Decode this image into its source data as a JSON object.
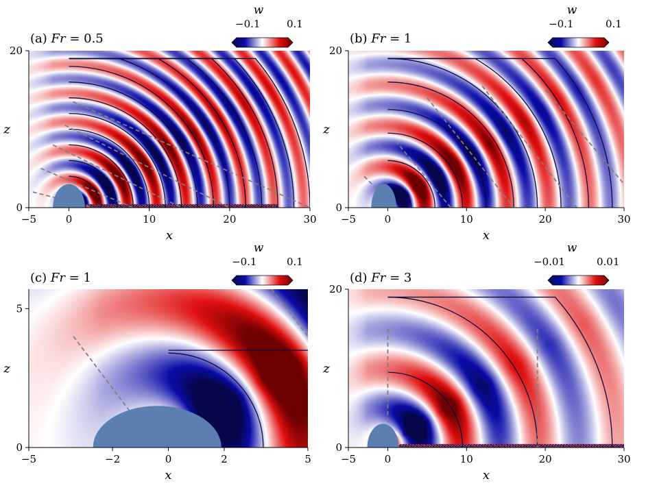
{
  "figure": {
    "colors": {
      "negative": "#0b0ba8",
      "negative_deep": "#06064a",
      "positive": "#e01010",
      "positive_deep": "#6e0000",
      "neutral": "#ffffff",
      "obstacle": "#5b7fb0",
      "crest": "#0a0a40",
      "ray": "#808080"
    }
  },
  "chart_data": [
    {
      "type": "heatmap",
      "panel": "(a)",
      "title": "(a) Fr = 0.5",
      "title_prefix": "(a) ",
      "title_var": "Fr",
      "title_rest": " = 0.5",
      "xlabel": "x",
      "ylabel": "z",
      "xlim": [
        -5,
        30
      ],
      "ylim": [
        0,
        20
      ],
      "xticks": [
        -5,
        0,
        10,
        20,
        30
      ],
      "xtick_labels": [
        "−5",
        "0",
        "10",
        "20",
        "30"
      ],
      "yticks": [
        0,
        20
      ],
      "ytick_labels": [
        "0",
        "20"
      ],
      "colorbar": {
        "label": "w",
        "min": -0.1,
        "max": 0.1,
        "min_label": "−0.1",
        "max_label": "0.1"
      },
      "obstacle": {
        "x_center": 0,
        "half_width": 2,
        "height": 0.5
      },
      "wave": {
        "k": 1.6,
        "envelope": 2.2,
        "shift": 0.12,
        "amp": 1.5,
        "turb_until": 26
      },
      "crest_radii": [
        2,
        4,
        6,
        8,
        10,
        12,
        14,
        16,
        18,
        20,
        22,
        24,
        26,
        28,
        30
      ],
      "crest_x0": 0,
      "crest_clip_z": 19,
      "rays": [
        {
          "x0": -4.5,
          "z0": 2,
          "x1": 3,
          "z1": 0
        },
        {
          "x0": -3.5,
          "z0": 5,
          "x1": 8,
          "z1": 0
        },
        {
          "x0": -2,
          "z0": 8,
          "x1": 14,
          "z1": 0
        },
        {
          "x0": -0.5,
          "z0": 10.5,
          "x1": 20,
          "z1": 0
        },
        {
          "x0": 0.5,
          "z0": 13.5,
          "x1": 30,
          "z1": 0
        }
      ]
    },
    {
      "type": "heatmap",
      "panel": "(b)",
      "title": "(b) Fr = 1",
      "title_prefix": "(b) ",
      "title_var": "Fr",
      "title_rest": " = 1",
      "xlabel": "x",
      "ylabel": "z",
      "xlim": [
        -5,
        30
      ],
      "ylim": [
        0,
        20
      ],
      "xticks": [
        -5,
        0,
        10,
        20,
        30
      ],
      "xtick_labels": [
        "−5",
        "0",
        "10",
        "20",
        "30"
      ],
      "yticks": [
        0,
        20
      ],
      "ytick_labels": [
        "0",
        "20"
      ],
      "colorbar": {
        "label": "w",
        "min": -0.1,
        "max": 0.1,
        "min_label": "−0.1",
        "max_label": "0.1"
      },
      "obstacle": {
        "x_center": -0.5,
        "half_width": 1.6,
        "height": 0.5
      },
      "wave": {
        "k": 1.05,
        "envelope": 1.6,
        "shift": 0.15,
        "amp": 1.7,
        "turb_until": 0
      },
      "crest_radii": [
        3,
        6,
        9.5,
        12.5,
        16,
        19,
        22,
        25.5,
        28.5
      ],
      "crest_x0": 0,
      "crest_clip_z": 19,
      "rays": [
        {
          "x0": -3,
          "z0": 4,
          "x1": 1,
          "z1": 0
        },
        {
          "x0": 1,
          "z0": 8.5,
          "x1": 8,
          "z1": 0
        },
        {
          "x0": 5,
          "z0": 14,
          "x1": 16,
          "z1": 0
        },
        {
          "x0": 12,
          "z0": 15.5,
          "x1": 24,
          "z1": 0
        },
        {
          "x0": 20,
          "z0": 15,
          "x1": 30,
          "z1": 3
        }
      ]
    },
    {
      "type": "heatmap",
      "panel": "(c)",
      "title": "(c) Fr = 1",
      "title_prefix": "(c) ",
      "title_var": "Fr",
      "title_rest": " = 1",
      "xlabel": "x",
      "ylabel": "z",
      "xlim": [
        -5,
        5
      ],
      "ylim": [
        0,
        5.7
      ],
      "xticks": [
        -5,
        -2,
        0,
        2,
        5
      ],
      "xtick_labels": [
        "−5",
        "−2",
        "0",
        "2",
        "5"
      ],
      "yticks": [
        0,
        5
      ],
      "ytick_labels": [
        "0",
        "5"
      ],
      "colorbar": {
        "label": "w",
        "min": -0.1,
        "max": 0.1,
        "min_label": "−0.1",
        "max_label": "0.1"
      },
      "obstacle": {
        "x_center": -0.4,
        "half_width": 2.3,
        "height": 0.5
      },
      "wave": {
        "k": 1.05,
        "envelope": 1.6,
        "shift": 0.15,
        "amp": 1.7,
        "turb_until": 0
      },
      "crest_radii": [
        3.4,
        6.6
      ],
      "crest_x0": 0,
      "crest_clip_z": 3.5,
      "rays": [
        {
          "x0": -3.4,
          "z0": 4,
          "x1": -0.4,
          "z1": 0
        },
        {
          "x0": 3.7,
          "z0": 5.7,
          "x1": 5,
          "z1": 4
        }
      ]
    },
    {
      "type": "heatmap",
      "panel": "(d)",
      "title": "(d) Fr = 3",
      "title_prefix": "(d) ",
      "title_var": "Fr",
      "title_rest": " = 3",
      "xlabel": "x",
      "ylabel": "z",
      "xlim": [
        -5,
        30
      ],
      "ylim": [
        0,
        20
      ],
      "xticks": [
        -5,
        0,
        10,
        20,
        30
      ],
      "xtick_labels": [
        "−5",
        "0",
        "10",
        "20",
        "30"
      ],
      "yticks": [
        0,
        20
      ],
      "ytick_labels": [
        "0",
        "20"
      ],
      "colorbar": {
        "label": "w",
        "min": -0.01,
        "max": 0.01,
        "min_label": "−0.01",
        "max_label": "0.01"
      },
      "obstacle": {
        "x_center": -0.6,
        "half_width": 2,
        "height": 0.5
      },
      "wave": {
        "k": 0.33,
        "envelope": 1.2,
        "shift": 0.3,
        "amp": 1.8,
        "turb_until": 30
      },
      "crest_radii": [
        9.5,
        19,
        28.5
      ],
      "crest_x0": 0,
      "crest_clip_z": 19,
      "rays": [
        {
          "x0": 0,
          "z0": 15,
          "x1": 0,
          "z1": 0
        },
        {
          "x0": 19,
          "z0": 15,
          "x1": 19,
          "z1": 0
        }
      ]
    }
  ]
}
